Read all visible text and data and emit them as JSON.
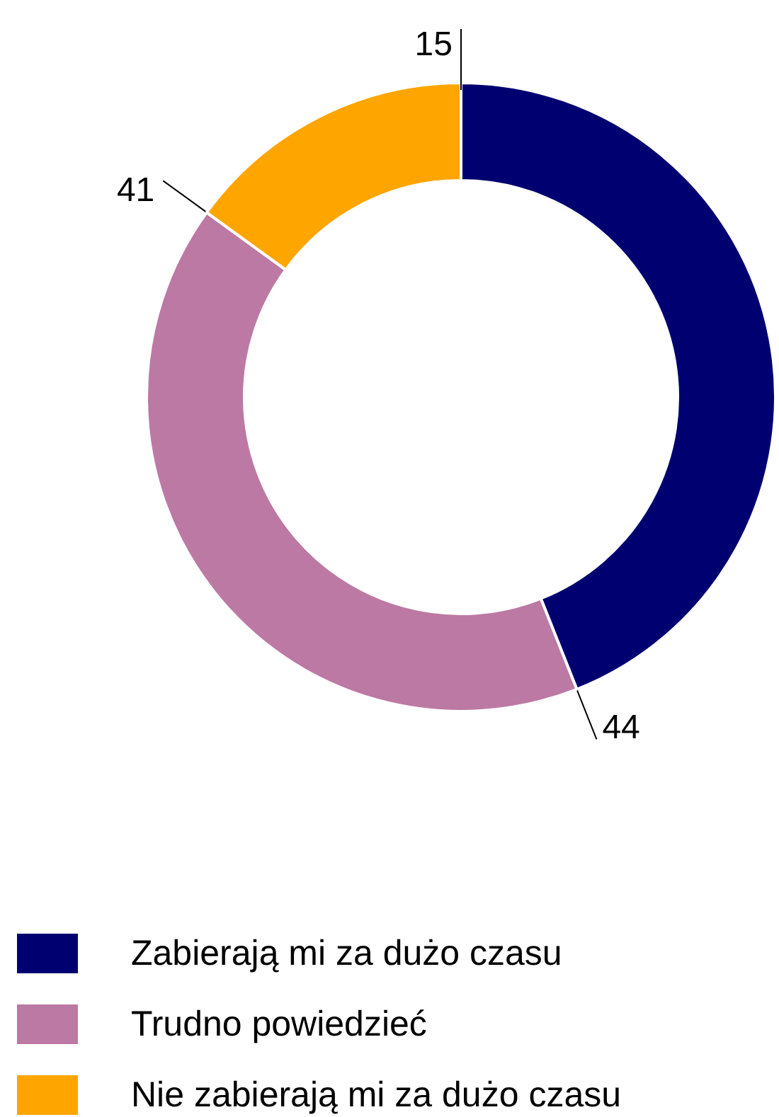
{
  "chart_data": {
    "type": "donut",
    "categories": [
      "Zabierają mi za dużo czasu",
      "Trudno powiedzieć",
      "Nie zabierają mi za dużo czasu"
    ],
    "values": [
      44,
      41,
      15
    ],
    "colors": [
      "#000070",
      "#bc79a3",
      "#ffa500"
    ],
    "data_labels": true,
    "legend": "bottom"
  }
}
